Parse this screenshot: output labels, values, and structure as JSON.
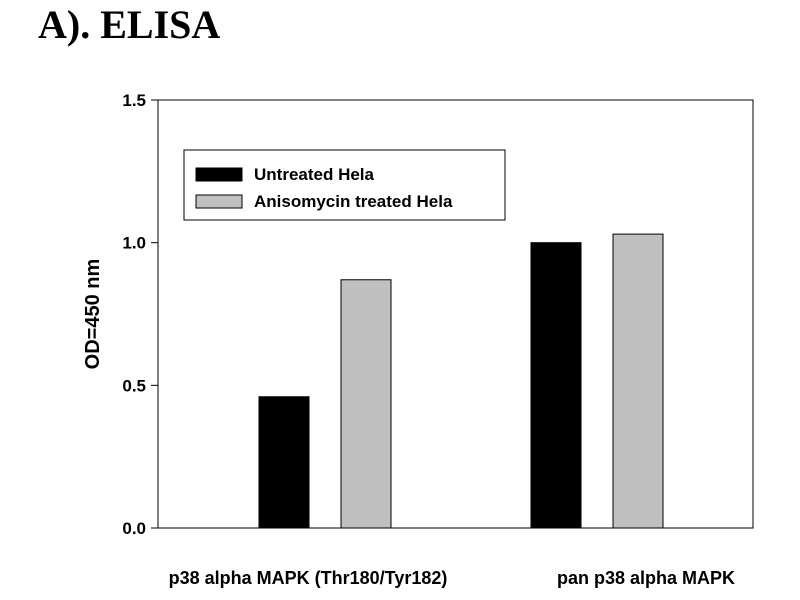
{
  "panel_title": "A). ELISA",
  "colors": {
    "axis": "#000000",
    "untreated": "#000000",
    "treated": "#c0c0c0"
  },
  "chart_data": {
    "type": "bar",
    "categories": [
      "p38 alpha MAPK (Thr180/Tyr182)",
      "pan p38 alpha MAPK"
    ],
    "series": [
      {
        "name": "Untreated Hela",
        "values": [
          0.46,
          1.0
        ],
        "color": "#000000"
      },
      {
        "name": "Anisomycin treated Hela",
        "values": [
          0.87,
          1.03
        ],
        "color": "#c0c0c0"
      }
    ],
    "title": "",
    "xlabel": "",
    "ylabel": "OD=450 nm",
    "ylim": [
      0,
      1.5
    ],
    "yticks": [
      0.0,
      0.5,
      1.0,
      1.5
    ],
    "ytick_labels": [
      "0.0",
      "0.5",
      "1.0",
      "1.5"
    ],
    "grid": false,
    "legend_position": "top-left"
  }
}
